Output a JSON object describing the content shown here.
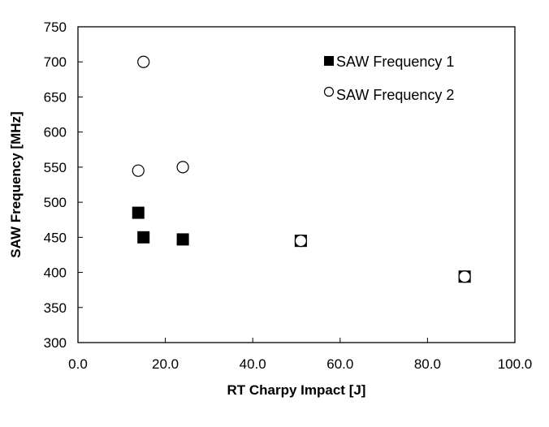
{
  "chart_data": {
    "type": "scatter",
    "xlabel": "RT Charpy Impact [J]",
    "ylabel": "SAW Frequency [MHz]",
    "xlim": [
      0,
      100
    ],
    "ylim": [
      300,
      750
    ],
    "x_ticks": [
      "0.0",
      "20.0",
      "40.0",
      "60.0",
      "80.0",
      "100.0"
    ],
    "y_ticks": [
      "300",
      "350",
      "400",
      "450",
      "500",
      "550",
      "600",
      "650",
      "700",
      "750"
    ],
    "grid": false,
    "legend_position": "top-right",
    "series": [
      {
        "name": "SAW Frequency 1",
        "marker": "filled-square",
        "color": "#000000",
        "x": [
          13.8,
          15.0,
          24.0,
          51.0,
          88.5
        ],
        "y": [
          485,
          450,
          447,
          445,
          394
        ]
      },
      {
        "name": "SAW Frequency 2",
        "marker": "open-circle",
        "color": "#000000",
        "x": [
          15.0,
          13.8,
          24.0,
          51.0,
          88.5
        ],
        "y": [
          700,
          545,
          550,
          445,
          394
        ]
      }
    ]
  }
}
